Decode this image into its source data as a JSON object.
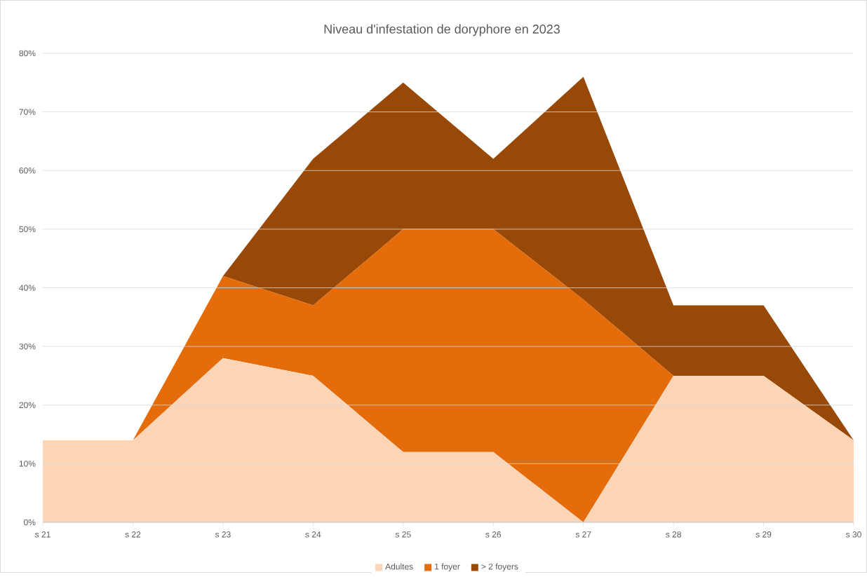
{
  "chart_data": {
    "type": "area",
    "title": "Niveau d'infestation de doryphore  en 2023",
    "categories": [
      "s 21",
      "s 22",
      "s 23",
      "s 24",
      "s 25",
      "s 26",
      "s 27",
      "s 28",
      "s 29",
      "s 30"
    ],
    "stacked": true,
    "series": [
      {
        "name": "Adultes",
        "color": "#fbd5b5",
        "values": [
          14,
          14,
          28,
          25,
          12,
          12,
          0,
          25,
          25,
          14
        ]
      },
      {
        "name": "1 foyer",
        "color": "#e46c0a",
        "values": [
          0,
          0,
          14,
          12,
          38,
          38,
          38,
          0,
          0,
          0
        ]
      },
      {
        "name": "> 2 foyers",
        "color": "#984807",
        "values": [
          0,
          0,
          0,
          25,
          25,
          12,
          38,
          12,
          12,
          0
        ]
      }
    ],
    "ylim": [
      0,
      80
    ],
    "yticks": [
      {
        "value": 0,
        "label": "0%"
      },
      {
        "value": 10,
        "label": "10%"
      },
      {
        "value": 20,
        "label": "20%"
      },
      {
        "value": 30,
        "label": "30%"
      },
      {
        "value": 40,
        "label": "40%"
      },
      {
        "value": 50,
        "label": "50%"
      },
      {
        "value": 60,
        "label": "60%"
      },
      {
        "value": 70,
        "label": "70%"
      },
      {
        "value": 80,
        "label": "80%"
      }
    ],
    "grid": "y",
    "legend": "bottom"
  }
}
